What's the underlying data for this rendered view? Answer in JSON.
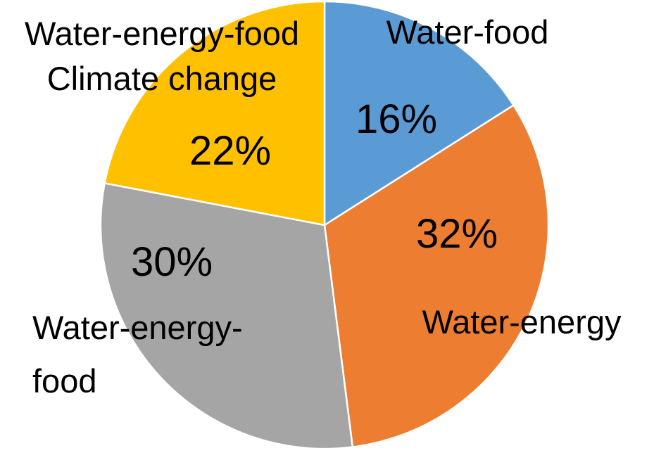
{
  "chart_data": {
    "type": "pie",
    "title": "",
    "slices": [
      {
        "label": "Water-food",
        "value": 16,
        "value_label": "16%",
        "color": "#5B9BD5"
      },
      {
        "label": "Water-energy",
        "value": 32,
        "value_label": "32%",
        "color": "#ED7D31"
      },
      {
        "label": "Water-energy-food",
        "value": 30,
        "value_label": "30%",
        "color": "#A5A5A5"
      },
      {
        "label": "Water-energy-food Climate change",
        "value": 22,
        "value_label": "22%",
        "color": "#FFC000"
      }
    ],
    "start_angle": "12 o'clock",
    "direction": "clockwise",
    "legend": "none"
  }
}
